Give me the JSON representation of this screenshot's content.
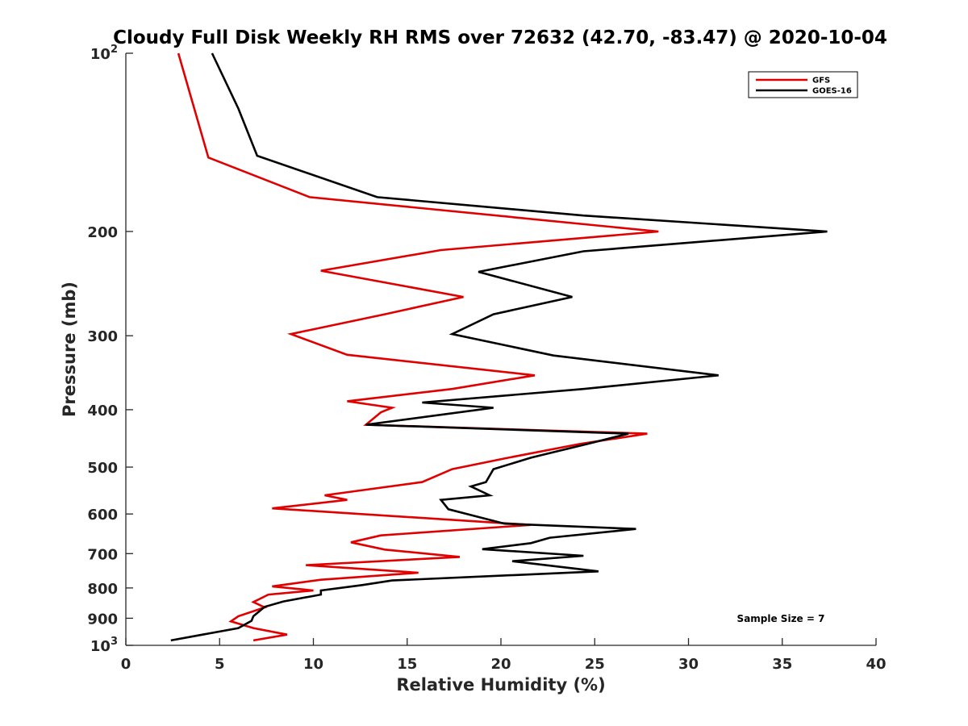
{
  "chart_data": {
    "type": "line",
    "title": "Cloudy Full Disk Weekly RH RMS over 72632 (42.70, -83.47) @ 2020-10-04",
    "xlabel": "Relative Humidity (%)",
    "ylabel": "Pressure (mb)",
    "xlim": [
      0,
      40
    ],
    "ylim": [
      100,
      1000
    ],
    "y_scale": "log",
    "y_reversed": true,
    "x_ticks": [
      "0",
      "5",
      "10",
      "15",
      "20",
      "25",
      "30",
      "35",
      "40"
    ],
    "y_ticks": [
      {
        "value": 100,
        "label": "10",
        "sup": "2"
      },
      {
        "value": 200,
        "label": "200",
        "sup": ""
      },
      {
        "value": 300,
        "label": "300",
        "sup": ""
      },
      {
        "value": 400,
        "label": "400",
        "sup": ""
      },
      {
        "value": 500,
        "label": "500",
        "sup": ""
      },
      {
        "value": 600,
        "label": "600",
        "sup": ""
      },
      {
        "value": 700,
        "label": "700",
        "sup": ""
      },
      {
        "value": 800,
        "label": "800",
        "sup": ""
      },
      {
        "value": 900,
        "label": "900",
        "sup": ""
      },
      {
        "value": 1000,
        "label": "10",
        "sup": "3"
      }
    ],
    "legend_position": "top-right",
    "series": [
      {
        "name": "GFS",
        "color": "#e00000",
        "points": [
          [
            2.8,
            100
          ],
          [
            4.4,
            150
          ],
          [
            9.8,
            175
          ],
          [
            28.4,
            200
          ],
          [
            16.8,
            215
          ],
          [
            10.4,
            233
          ],
          [
            18.0,
            258
          ],
          [
            13.8,
            276
          ],
          [
            8.8,
            298
          ],
          [
            11.8,
            323
          ],
          [
            21.8,
            350
          ],
          [
            17.4,
            369
          ],
          [
            11.8,
            387
          ],
          [
            14.2,
            397
          ],
          [
            13.6,
            404
          ],
          [
            12.8,
            424
          ],
          [
            27.8,
            439
          ],
          [
            24.2,
            457
          ],
          [
            20.4,
            482
          ],
          [
            17.4,
            504
          ],
          [
            15.8,
            530
          ],
          [
            10.6,
            558
          ],
          [
            11.8,
            568
          ],
          [
            7.8,
            587
          ],
          [
            21.6,
            626
          ],
          [
            13.6,
            652
          ],
          [
            12.0,
            670
          ],
          [
            13.8,
            689
          ],
          [
            17.8,
            709
          ],
          [
            9.6,
            732
          ],
          [
            15.6,
            754
          ],
          [
            10.4,
            775
          ],
          [
            7.8,
            795
          ],
          [
            10.0,
            808
          ],
          [
            7.6,
            821
          ],
          [
            6.8,
            845
          ],
          [
            7.4,
            863
          ],
          [
            6.0,
            893
          ],
          [
            5.6,
            911
          ],
          [
            6.8,
            935
          ],
          [
            8.6,
            959
          ],
          [
            6.8,
            981
          ]
        ]
      },
      {
        "name": "GOES-16",
        "color": "#000000",
        "points": [
          [
            4.6,
            100
          ],
          [
            6.0,
            124
          ],
          [
            7.0,
            149
          ],
          [
            13.4,
            175
          ],
          [
            24.4,
            188
          ],
          [
            37.4,
            200
          ],
          [
            24.4,
            216
          ],
          [
            18.8,
            234
          ],
          [
            23.8,
            258
          ],
          [
            19.6,
            276
          ],
          [
            17.4,
            298
          ],
          [
            22.8,
            324
          ],
          [
            31.6,
            350
          ],
          [
            24.4,
            369
          ],
          [
            15.8,
            389
          ],
          [
            19.6,
            397
          ],
          [
            12.8,
            424
          ],
          [
            26.8,
            439
          ],
          [
            24.6,
            457
          ],
          [
            21.6,
            482
          ],
          [
            19.6,
            504
          ],
          [
            19.2,
            530
          ],
          [
            18.4,
            539
          ],
          [
            19.4,
            558
          ],
          [
            16.8,
            568
          ],
          [
            17.2,
            589
          ],
          [
            20.2,
            623
          ],
          [
            27.2,
            636
          ],
          [
            22.6,
            658
          ],
          [
            21.6,
            672
          ],
          [
            19.0,
            688
          ],
          [
            24.4,
            706
          ],
          [
            20.6,
            721
          ],
          [
            25.2,
            750
          ],
          [
            14.2,
            777
          ],
          [
            12.6,
            791
          ],
          [
            10.4,
            808
          ],
          [
            10.4,
            821
          ],
          [
            8.4,
            843
          ],
          [
            7.4,
            861
          ],
          [
            6.8,
            893
          ],
          [
            6.7,
            909
          ],
          [
            6.0,
            935
          ],
          [
            2.4,
            981
          ]
        ]
      }
    ],
    "annotations": [
      "Sample Size = 7"
    ]
  }
}
